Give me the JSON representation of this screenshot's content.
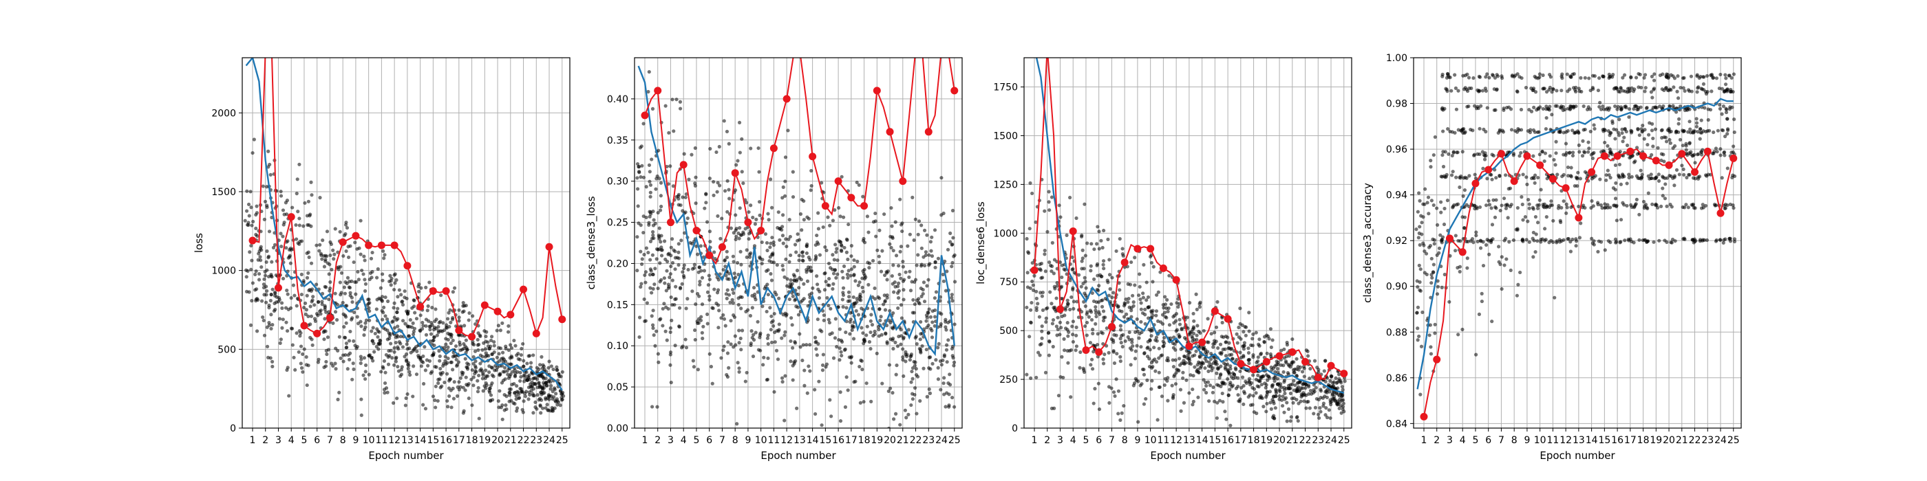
{
  "chart_data": [
    {
      "type": "line",
      "xlabel": "Epoch number",
      "ylabel": "loss",
      "x_ticks": [
        1,
        2,
        3,
        4,
        5,
        6,
        7,
        8,
        9,
        10,
        11,
        12,
        13,
        14,
        15,
        16,
        17,
        18,
        19,
        20,
        21,
        22,
        23,
        24,
        25
      ],
      "y_ticks": [
        "0",
        "500",
        "1000",
        "1500",
        "2000"
      ],
      "y_tick_values": [
        0,
        500,
        1000,
        1500,
        2000
      ],
      "xlim": [
        0.2,
        25.6
      ],
      "ylim": [
        0,
        2350
      ],
      "grid": true,
      "scatter_profile": {
        "start": 1200,
        "end": 230,
        "spread_start": 900,
        "spread_end": 180
      },
      "series": [
        {
          "role": "train",
          "color": "#1f77b4",
          "x": [
            0.5,
            1,
            1.5,
            2,
            2.5,
            3,
            3.5,
            4,
            4.5,
            5,
            5.5,
            6,
            6.5,
            7,
            7.5,
            8,
            8.5,
            9,
            9.5,
            10,
            10.5,
            11,
            11.5,
            12,
            12.5,
            13,
            13.5,
            14,
            14.5,
            15,
            15.5,
            16,
            16.5,
            17,
            17.5,
            18,
            18.5,
            19,
            19.5,
            20,
            20.5,
            21,
            21.5,
            22,
            22.5,
            23,
            23.5,
            24,
            24.5,
            25
          ],
          "values": [
            2300,
            2350,
            2200,
            1700,
            1400,
            1150,
            1000,
            950,
            960,
            900,
            930,
            880,
            820,
            850,
            760,
            780,
            740,
            760,
            840,
            700,
            720,
            640,
            680,
            600,
            620,
            560,
            580,
            520,
            560,
            500,
            520,
            470,
            500,
            460,
            470,
            430,
            450,
            420,
            440,
            400,
            410,
            380,
            400,
            360,
            380,
            340,
            360,
            330,
            300,
            240
          ]
        },
        {
          "role": "validation",
          "color": "#e8171e",
          "x": [
            1,
            1.5,
            2,
            2.5,
            3,
            3.5,
            4,
            4.5,
            5,
            5.5,
            6,
            6.5,
            7,
            7.5,
            8,
            8.5,
            9,
            9.5,
            10,
            10.5,
            11,
            11.5,
            12,
            12.5,
            13,
            13.5,
            14,
            14.5,
            15,
            15.5,
            16,
            16.5,
            17,
            17.5,
            18,
            18.5,
            19,
            19.5,
            20,
            20.5,
            21,
            21.5,
            22,
            22.5,
            23,
            23.5,
            24,
            24.5,
            25
          ],
          "values": [
            1190,
            1180,
            2400,
            2350,
            890,
            1180,
            1340,
            880,
            650,
            620,
            600,
            640,
            700,
            1050,
            1180,
            1200,
            1220,
            1200,
            1160,
            1150,
            1160,
            1160,
            1160,
            1120,
            1030,
            900,
            770,
            820,
            870,
            860,
            870,
            780,
            620,
            590,
            580,
            670,
            780,
            760,
            740,
            700,
            720,
            800,
            880,
            750,
            600,
            700,
            1150,
            900,
            690
          ]
        }
      ]
    },
    {
      "type": "line",
      "xlabel": "Epoch number",
      "ylabel": "class_dense3_loss",
      "x_ticks": [
        1,
        2,
        3,
        4,
        5,
        6,
        7,
        8,
        9,
        10,
        11,
        12,
        13,
        14,
        15,
        16,
        17,
        18,
        19,
        20,
        21,
        22,
        23,
        24,
        25
      ],
      "y_ticks": [
        "0.00",
        "0.05",
        "0.10",
        "0.15",
        "0.20",
        "0.25",
        "0.30",
        "0.35",
        "0.40"
      ],
      "y_tick_values": [
        0,
        0.05,
        0.1,
        0.15,
        0.2,
        0.25,
        0.3,
        0.35,
        0.4
      ],
      "xlim": [
        0.2,
        25.6
      ],
      "ylim": [
        0,
        0.45
      ],
      "grid": true,
      "scatter_profile": {
        "start": 0.24,
        "end": 0.13,
        "spread_start": 0.2,
        "spread_end": 0.15
      },
      "series": [
        {
          "role": "train",
          "color": "#1f77b4",
          "x": [
            0.5,
            1,
            1.5,
            2,
            2.5,
            3,
            3.5,
            4,
            4.5,
            5,
            5.5,
            6,
            6.5,
            7,
            7.5,
            8,
            8.5,
            9,
            9.5,
            10,
            10.5,
            11,
            11.5,
            12,
            12.5,
            13,
            13.5,
            14,
            14.5,
            15,
            15.5,
            16,
            16.5,
            17,
            17.5,
            18,
            18.5,
            19,
            19.5,
            20,
            20.5,
            21,
            21.5,
            22,
            22.5,
            23,
            23.5,
            24,
            24.5,
            25
          ],
          "values": [
            0.44,
            0.42,
            0.36,
            0.33,
            0.3,
            0.27,
            0.25,
            0.26,
            0.21,
            0.23,
            0.2,
            0.22,
            0.19,
            0.18,
            0.2,
            0.17,
            0.19,
            0.16,
            0.22,
            0.15,
            0.17,
            0.16,
            0.14,
            0.16,
            0.17,
            0.15,
            0.13,
            0.16,
            0.14,
            0.15,
            0.16,
            0.14,
            0.13,
            0.15,
            0.12,
            0.14,
            0.16,
            0.13,
            0.12,
            0.14,
            0.12,
            0.13,
            0.11,
            0.13,
            0.12,
            0.1,
            0.09,
            0.21,
            0.17,
            0.1
          ]
        },
        {
          "role": "validation",
          "color": "#e8171e",
          "x": [
            1,
            1.5,
            2,
            2.5,
            3,
            3.5,
            4,
            4.5,
            5,
            5.5,
            6,
            6.5,
            7,
            7.5,
            8,
            8.5,
            9,
            9.5,
            10,
            10.5,
            11,
            11.5,
            12,
            12.5,
            13,
            13.5,
            14,
            14.5,
            15,
            15.5,
            16,
            16.5,
            17,
            17.5,
            18,
            18.5,
            19,
            19.5,
            20,
            20.5,
            21,
            21.5,
            22,
            22.5,
            23,
            23.5,
            24,
            24.5,
            25
          ],
          "values": [
            0.38,
            0.4,
            0.41,
            0.33,
            0.25,
            0.31,
            0.32,
            0.27,
            0.24,
            0.23,
            0.21,
            0.2,
            0.22,
            0.24,
            0.31,
            0.29,
            0.25,
            0.23,
            0.24,
            0.3,
            0.34,
            0.37,
            0.4,
            0.45,
            0.46,
            0.4,
            0.33,
            0.3,
            0.27,
            0.26,
            0.3,
            0.29,
            0.28,
            0.27,
            0.27,
            0.33,
            0.41,
            0.39,
            0.36,
            0.33,
            0.3,
            0.38,
            0.46,
            0.46,
            0.36,
            0.38,
            0.46,
            0.46,
            0.41
          ]
        }
      ]
    },
    {
      "type": "line",
      "xlabel": "Epoch number",
      "ylabel": "loc_dense6_loss",
      "x_ticks": [
        1,
        2,
        3,
        4,
        5,
        6,
        7,
        8,
        9,
        10,
        11,
        12,
        13,
        14,
        15,
        16,
        17,
        18,
        19,
        20,
        21,
        22,
        23,
        24,
        25
      ],
      "y_ticks": [
        "0",
        "250",
        "500",
        "750",
        "1000",
        "1250",
        "1500",
        "1750"
      ],
      "y_tick_values": [
        0,
        250,
        500,
        750,
        1000,
        1250,
        1500,
        1750
      ],
      "xlim": [
        0.2,
        25.6
      ],
      "ylim": [
        0,
        1900
      ],
      "grid": true,
      "scatter_profile": {
        "start": 800,
        "end": 170,
        "spread_start": 650,
        "spread_end": 140
      },
      "series": [
        {
          "role": "train",
          "color": "#1f77b4",
          "x": [
            0.5,
            1,
            1.5,
            2,
            2.5,
            3,
            3.5,
            4,
            4.5,
            5,
            5.5,
            6,
            6.5,
            7,
            7.5,
            8,
            8.5,
            9,
            9.5,
            10,
            10.5,
            11,
            11.5,
            12,
            12.5,
            13,
            13.5,
            14,
            14.5,
            15,
            15.5,
            16,
            16.5,
            17,
            17.5,
            18,
            18.5,
            19,
            19.5,
            20,
            20.5,
            21,
            21.5,
            22,
            22.5,
            23,
            23.5,
            24,
            24.5,
            25
          ],
          "values": [
            1900,
            1950,
            1800,
            1500,
            1200,
            1000,
            820,
            760,
            700,
            650,
            720,
            680,
            700,
            600,
            560,
            540,
            560,
            520,
            500,
            560,
            480,
            500,
            440,
            460,
            420,
            400,
            420,
            380,
            360,
            380,
            340,
            360,
            330,
            320,
            300,
            310,
            290,
            300,
            280,
            270,
            260,
            270,
            250,
            240,
            230,
            240,
            220,
            200,
            190,
            180
          ]
        },
        {
          "role": "validation",
          "color": "#e8171e",
          "x": [
            1,
            1.5,
            2,
            2.5,
            3,
            3.5,
            4,
            4.5,
            5,
            5.5,
            6,
            6.5,
            7,
            7.5,
            8,
            8.5,
            9,
            9.5,
            10,
            10.5,
            11,
            11.5,
            12,
            12.5,
            13,
            13.5,
            14,
            14.5,
            15,
            15.5,
            16,
            16.5,
            17,
            17.5,
            18,
            18.5,
            19,
            19.5,
            20,
            20.5,
            21,
            21.5,
            22,
            22.5,
            23,
            23.5,
            24,
            24.5,
            25
          ],
          "values": [
            810,
            1300,
            1950,
            1500,
            610,
            700,
            1010,
            600,
            400,
            420,
            390,
            430,
            520,
            780,
            850,
            940,
            920,
            930,
            920,
            850,
            820,
            800,
            760,
            600,
            420,
            440,
            440,
            500,
            600,
            580,
            560,
            420,
            330,
            320,
            300,
            320,
            340,
            360,
            370,
            380,
            390,
            400,
            340,
            320,
            260,
            250,
            320,
            300,
            280
          ]
        }
      ]
    },
    {
      "type": "line",
      "xlabel": "Epoch number",
      "ylabel": "class_dense3_accuracy",
      "x_ticks": [
        1,
        2,
        3,
        4,
        5,
        6,
        7,
        8,
        9,
        10,
        11,
        12,
        13,
        14,
        15,
        16,
        17,
        18,
        19,
        20,
        21,
        22,
        23,
        24,
        25
      ],
      "y_ticks": [
        "0.84",
        "0.86",
        "0.88",
        "0.90",
        "0.92",
        "0.94",
        "0.96",
        "0.98",
        "1.00"
      ],
      "y_tick_values": [
        0.84,
        0.86,
        0.88,
        0.9,
        0.92,
        0.94,
        0.96,
        0.98,
        1.0
      ],
      "xlim": [
        0.2,
        25.6
      ],
      "ylim": [
        0.838,
        1.0
      ],
      "grid": true,
      "scatter_profile": {
        "start": 0.9,
        "end": 0.975,
        "spread_start": 0.06,
        "spread_end": 0.03
      },
      "series": [
        {
          "role": "train",
          "color": "#1f77b4",
          "x": [
            0.5,
            1,
            1.5,
            2,
            2.5,
            3,
            3.5,
            4,
            4.5,
            5,
            5.5,
            6,
            6.5,
            7,
            7.5,
            8,
            8.5,
            9,
            9.5,
            10,
            10.5,
            11,
            11.5,
            12,
            12.5,
            13,
            13.5,
            14,
            14.5,
            15,
            15.5,
            16,
            16.5,
            17,
            17.5,
            18,
            18.5,
            19,
            19.5,
            20,
            20.5,
            21,
            21.5,
            22,
            22.5,
            23,
            23.5,
            24,
            24.5,
            25
          ],
          "values": [
            0.855,
            0.87,
            0.89,
            0.905,
            0.915,
            0.925,
            0.93,
            0.935,
            0.94,
            0.945,
            0.948,
            0.95,
            0.952,
            0.955,
            0.957,
            0.96,
            0.962,
            0.963,
            0.965,
            0.966,
            0.967,
            0.968,
            0.969,
            0.97,
            0.971,
            0.972,
            0.971,
            0.973,
            0.974,
            0.973,
            0.975,
            0.974,
            0.975,
            0.976,
            0.975,
            0.976,
            0.977,
            0.976,
            0.977,
            0.978,
            0.977,
            0.978,
            0.979,
            0.978,
            0.979,
            0.98,
            0.979,
            0.982,
            0.981,
            0.981
          ]
        },
        {
          "role": "validation",
          "color": "#e8171e",
          "x": [
            1,
            1.5,
            2,
            2.5,
            3,
            3.5,
            4,
            4.5,
            5,
            5.5,
            6,
            6.5,
            7,
            7.5,
            8,
            8.5,
            9,
            9.5,
            10,
            10.5,
            11,
            11.5,
            12,
            12.5,
            13,
            13.5,
            14,
            14.5,
            15,
            15.5,
            16,
            16.5,
            17,
            17.5,
            18,
            18.5,
            19,
            19.5,
            20,
            20.5,
            21,
            21.5,
            22,
            22.5,
            23,
            23.5,
            24,
            24.5,
            25
          ],
          "values": [
            0.843,
            0.858,
            0.868,
            0.885,
            0.921,
            0.918,
            0.915,
            0.932,
            0.945,
            0.95,
            0.951,
            0.955,
            0.958,
            0.95,
            0.946,
            0.952,
            0.957,
            0.955,
            0.953,
            0.95,
            0.947,
            0.944,
            0.943,
            0.936,
            0.93,
            0.945,
            0.95,
            0.956,
            0.957,
            0.955,
            0.957,
            0.958,
            0.959,
            0.96,
            0.957,
            0.956,
            0.955,
            0.953,
            0.953,
            0.955,
            0.958,
            0.954,
            0.95,
            0.955,
            0.959,
            0.945,
            0.932,
            0.945,
            0.956
          ]
        }
      ]
    }
  ]
}
